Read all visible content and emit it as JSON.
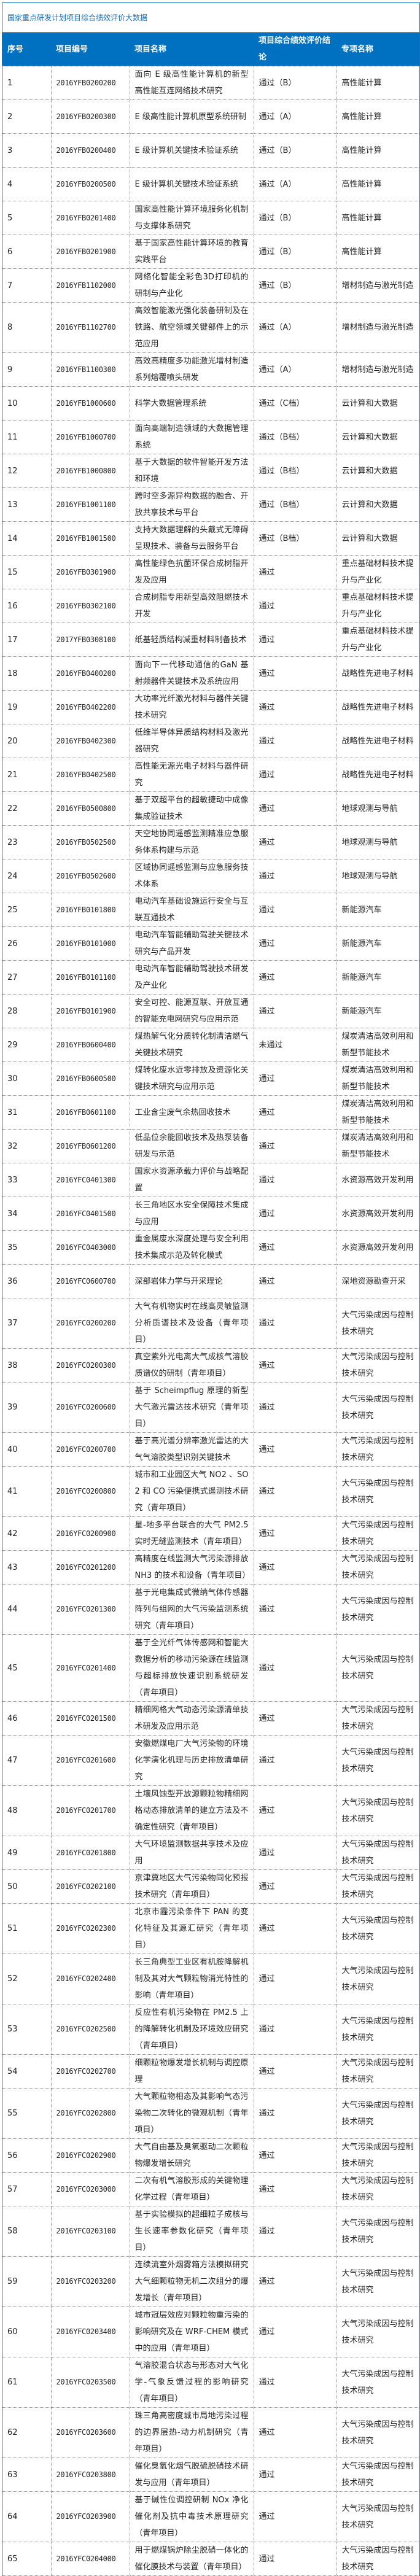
{
  "title": "国家重点研发计划项目综合绩效评价大数据",
  "colors": {
    "header_bg": "#0071c1",
    "title": "#1a6fb5",
    "frame": "#1a73c0"
  },
  "headers": [
    "序号",
    "项目编号",
    "项目名称",
    "项目综合绩效评价结论",
    "专项名称"
  ],
  "rows": [
    [
      "1",
      "2016YFB0200200",
      "面向 E 级高性能计算机的新型高性能互连网络技术研究",
      "通过（B）",
      "高性能计算"
    ],
    [
      "2",
      "2016YFB0200300",
      "E 级高性能计算机原型系统研制",
      "通过（A）",
      "高性能计算"
    ],
    [
      "3",
      "2016YFB0200400",
      "E 级计算机关键技术验证系统",
      "通过（B）",
      "高性能计算"
    ],
    [
      "4",
      "2016YFB0200500",
      "E 级计算机关键技术验证系统",
      "通过（A）",
      "高性能计算"
    ],
    [
      "5",
      "2016YFB0201400",
      "国家高性能计算环境服务化机制与支撑体系研究",
      "通过（B）",
      "高性能计算"
    ],
    [
      "6",
      "2016YFB0201900",
      "基于国家高性能计算环境的教育实践平台",
      "通过（B）",
      "高性能计算"
    ],
    [
      "7",
      "2016YFB1102000",
      "网络化智能全彩色3D打印机的研制与产业化",
      "通过（B）",
      "增材制造与激光制造"
    ],
    [
      "8",
      "2016YFB1102700",
      "高效智能激光强化装备研制及在铁路、航空领域关键部件上的示范应用",
      "通过（A）",
      "增材制造与激光制造"
    ],
    [
      "9",
      "2016YFB1100300",
      "高效高精度多功能激光增材制造系列熔覆喷头研发",
      "通过（A）",
      "增材制造与激光制造"
    ],
    [
      "10",
      "2016YFB1000600",
      "科学大数据管理系统",
      "通过（C档）",
      "云计算和大数据"
    ],
    [
      "11",
      "2016YFB1000700",
      "面向高端制造领域的大数据管理系统",
      "通过（B档）",
      "云计算和大数据"
    ],
    [
      "12",
      "2016YFB1000800",
      "基于大数据的软件智能开发方法和环境",
      "通过（B档）",
      "云计算和大数据"
    ],
    [
      "13",
      "2016YFB1001100",
      "跨时空多源异构数据的融合、开放共享技术与平台",
      "通过（B档）",
      "云计算和大数据"
    ],
    [
      "14",
      "2016YFB1001500",
      "支持大数据理解的头戴式无障碍呈现技术、装备与云服务平台",
      "通过（B档）",
      "云计算和大数据"
    ],
    [
      "15",
      "2016YFB0301900",
      "高性能绿色抗菌环保合成树脂开发及应用",
      "通过",
      "重点基础材料技术提升与产业化"
    ],
    [
      "16",
      "2016YFB0302100",
      "合成树脂专用新型高效阻燃技术开发",
      "通过",
      "重点基础材料技术提升与产业化"
    ],
    [
      "17",
      "2017YFB0308100",
      "纸基轻质结构减重材料制备技术",
      "通过",
      "重点基础材料技术提升与产业化"
    ],
    [
      "18",
      "2016YFB0400200",
      "面向下一代移动通信的GaN 基射频器件关键技术及系统应用",
      "通过",
      "战略性先进电子材料"
    ],
    [
      "19",
      "2016YFB0402200",
      "大功率光纤激光材料与器件关键技术研究",
      "通过",
      "战略性先进电子材料"
    ],
    [
      "20",
      "2016YFB0402300",
      "低维半导体异质结构材料及激光器研究",
      "通过",
      "战略性先进电子材料"
    ],
    [
      "21",
      "2016YFB0402500",
      "高性能无源光电子材料与器件研究",
      "通过",
      "战略性先进电子材料"
    ],
    [
      "22",
      "2016YFB0500800",
      "基于双超平台的超敏捷动中成像集成验证技术",
      "通过",
      "地球观测与导航"
    ],
    [
      "23",
      "2016YFB0502500",
      "天空地协同遥感监测精准应急服务体系构建与示范",
      "通过",
      "地球观测与导航"
    ],
    [
      "24",
      "2016YFB0502600",
      "区域协同遥感监测与应急服务技术体系",
      "通过",
      "地球观测与导航"
    ],
    [
      "25",
      "2016YFB0101800",
      "电动汽车基础设施运行安全与互联互通技术",
      "通过",
      "新能源汽车"
    ],
    [
      "26",
      "2016YFB0101000",
      "电动汽车智能辅助驾驶关键技术研究与产品开发",
      "通过",
      "新能源汽车"
    ],
    [
      "27",
      "2016YFB0101100",
      "电动汽车智能辅助驾驶技术研发及产业化",
      "通过",
      "新能源汽车"
    ],
    [
      "28",
      "2016YFB0101900",
      "安全可控、能源互联、开放互通的智能充电网研究与应用示范",
      "通过",
      "新能源汽车"
    ],
    [
      "29",
      "2016YFB0600400",
      "煤热解气化分质转化制清洁燃气关键技术研究",
      "未通过",
      "煤炭清洁高效利用和新型节能技术"
    ],
    [
      "30",
      "2016YFB0600500",
      "煤转化废水近零排放及资源化关键技术研究与应用示范",
      "通过",
      "煤炭清洁高效利用和新型节能技术"
    ],
    [
      "31",
      "2016YFB0601100",
      "工业含尘废气余热回收技术",
      "通过",
      "煤炭清洁高效利用和新型节能技术"
    ],
    [
      "32",
      "2016YFB0601200",
      "低品位余能回收技术及热泵装备研发与示范",
      "通过",
      "煤炭清洁高效利用和新型节能技术"
    ],
    [
      "33",
      "2016YFC0401300",
      "国家水资源承载力评价与战略配置",
      "通过",
      "水资源高效开发利用"
    ],
    [
      "34",
      "2016YFC0401500",
      "长三角地区水安全保障技术集成与应用",
      "通过",
      "水资源高效开发利用"
    ],
    [
      "35",
      "2016YFC0403000",
      "重金属废水深度处理与安全利用技术集成示范及转化模式",
      "通过",
      "水资源高效开发利用"
    ],
    [
      "36",
      "2016YFC0600700",
      "深部岩体力学与开采理论",
      "通过",
      "深地资源勘查开采"
    ],
    [
      "37",
      "2016YFC0200200",
      "大气有机物实时在线高灵敏监测分析质谱技术及设备（青年项目）",
      "通过",
      "大气污染成因与控制技术研究"
    ],
    [
      "38",
      "2016YFC0200300",
      "真空紫外光电离大气成核气溶胶质谱仪的研制（青年项目）",
      "通过",
      "大气污染成因与控制技术研究"
    ],
    [
      "39",
      "2016YFC0200600",
      "基于 Scheimpflug 原理的新型大气激光雷达技术研究（青年项目）",
      "通过",
      "大气污染成因与控制技术研究"
    ],
    [
      "40",
      "2016YFC0200700",
      "基于高光谱分辨率激光雷达的大气气溶胶类型识别关键技术",
      "通过",
      "大气污染成因与控制技术研究"
    ],
    [
      "41",
      "2016YFC0200800",
      "城市和工业园区大气 NO2 、SO2 和 CO 污染便携式遥测技术研究（青年项目）",
      "通过",
      "大气污染成因与控制技术研究"
    ],
    [
      "42",
      "2016YFC0200900",
      "星-地多平台联合的大气 PM2.5 实时无缝监测技术（青年项目）",
      "通过",
      "大气污染成因与控制技术研究"
    ],
    [
      "43",
      "2016YFC0201200",
      "高精度在线监测大气污染源排放 NH3 的技术和设备（青年项目）",
      "通过",
      "大气污染成因与控制技术研究"
    ],
    [
      "44",
      "2016YFC0201300",
      "基于光电集成式微纳气体传感器阵列与组网的大气污染监测系统研究（青年项目）",
      "通过",
      "大气污染成因与控制技术研究"
    ],
    [
      "45",
      "2016YFC0201400",
      "基于全光纤气体传感网和智能大数据分析的移动污染源在线监测与超标排放快速识别系统研发（青年项目）",
      "通过",
      "大气污染成因与控制技术研究"
    ],
    [
      "46",
      "2016YFC0201500",
      "精细网格大气动态污染源清单技术研发及应用示范",
      "通过",
      "大气污染成因与控制技术研究"
    ],
    [
      "47",
      "2016YFC0201600",
      "安徽燃煤电厂大气污染物的环境化学演化机理与历史排放清单研究",
      "通过",
      "大气污染成因与控制技术研究"
    ],
    [
      "48",
      "2016YFC0201700",
      "土壤风蚀型开放源颗粒物精细网格动态排放清单的建立方法及不确定性研究（青年项目）",
      "通过",
      "大气污染成因与控制技术研究"
    ],
    [
      "49",
      "2016YFC0201800",
      "大气环境监测数据共享技术及应用",
      "通过",
      "大气污染成因与控制技术研究"
    ],
    [
      "50",
      "2016YFC0202100",
      "京津冀地区大气污染物同化预报技术研究（青年项目）",
      "通过",
      "大气污染成因与控制技术研究"
    ],
    [
      "51",
      "2016YFC0202300",
      "北京市霾污染条件下 PAN 的变化特征及其源汇研究（青年项目）",
      "通过",
      "大气污染成因与控制技术研究"
    ],
    [
      "52",
      "2016YFC0202400",
      "长三角典型工业区有机胺降解机制及其对大气颗粒物消光特性的影响（青年项目）",
      "通过",
      "大气污染成因与控制技术研究"
    ],
    [
      "53",
      "2016YFC0202500",
      "反应性有机污染物在 PM2.5 上的降解转化机制及环境效应研究（青年项目）",
      "通过",
      "大气污染成因与控制技术研究"
    ],
    [
      "54",
      "2016YFC0202700",
      "细颗粒物爆发增长机制与调控原理",
      "通过",
      "大气污染成因与控制技术研究"
    ],
    [
      "55",
      "2016YFC0202800",
      "大气颗粒物相态及其影响气态污染物二次转化的微观机制（青年项目）",
      "通过",
      "大气污染成因与控制技术研究"
    ],
    [
      "56",
      "2016YFC0202900",
      "大气自由基及臭氧驱动二次颗粒物爆发增长研究",
      "通过",
      "大气污染成因与控制技术研究"
    ],
    [
      "57",
      "2016YFC0203000",
      "二次有机气溶胶形成的关键物理化学过程（青年项目）",
      "通过",
      "大气污染成因与控制技术研究"
    ],
    [
      "58",
      "2016YFC0203100",
      "基于实验模拟的超细粒子成核与生长速率参数化研究（青年项目）",
      "通过",
      "大气污染成因与控制技术研究"
    ],
    [
      "59",
      "2016YFC0203200",
      "连续流室外烟雾箱方法模拟研究大气细颗粒物无机二次组分的爆发增长（青年项目）",
      "通过",
      "大气污染成因与控制技术研究"
    ],
    [
      "60",
      "2016YFC0203400",
      "城市冠层效应对颗粒物重污染的影响研究及在 WRF-CHEM 模式中的应用（青年项目）",
      "通过",
      "大气污染成因与控制技术研究"
    ],
    [
      "61",
      "2016YFC0203500",
      "气溶胶混合状态与形态对大气化学-气象反馈过程的影响研究（青年项目）",
      "通过",
      "大气污染成因与控制技术研究"
    ],
    [
      "62",
      "2016YFC0203600",
      "珠三角高密度城市局地污染过程的边界层热-动力机制研究（青年项目）",
      "通过",
      "大气污染成因与控制技术研究"
    ],
    [
      "63",
      "2016YFC0203800",
      "催化臭氧化烟气脱硫脱硝技术研发与应用（青年项目）",
      "通过",
      "大气污染成因与控制技术研究"
    ],
    [
      "64",
      "2016YFC0203900",
      "基于碱性位调控研制 NOx 净化催化剂及抗中毒技术原理研究（青年项目）",
      "通过",
      "大气污染成因与控制技术研究"
    ],
    [
      "65",
      "2016YFC0204000",
      "用于燃煤锅炉除尘脱硝一体化的催化膜技术与装置（青年项目）",
      "通过",
      "大气污染成因与控制技术研究"
    ]
  ]
}
